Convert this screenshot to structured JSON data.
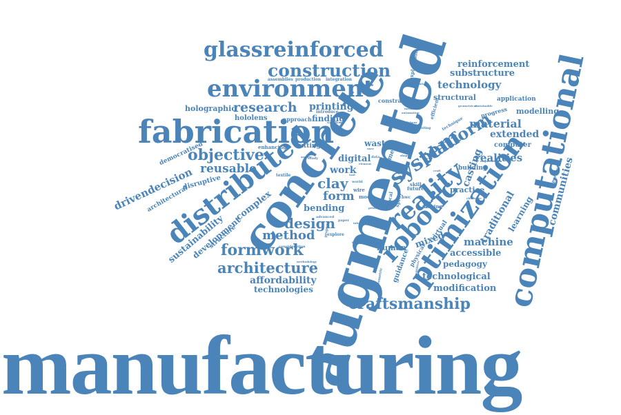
{
  "words": {
    "manufacturing": "manufacturing",
    "augmented": "augmented",
    "concrete": "concrete",
    "computational": "computational",
    "optimization": "optimization",
    "fabrication": "fabrication",
    "distributed": "distributed",
    "environment": "environment",
    "glassreinforced": "glassreinforced",
    "construction": "construction",
    "robotic": "robotic",
    "reality": "reality",
    "system": "system",
    "platform": "platform",
    "craftsmanship": "craftsmanship",
    "architecture": "architecture",
    "formwork": "formwork",
    "objective": "objective",
    "research": "research",
    "design": "design",
    "method": "method",
    "clay": "clay",
    "form": "form",
    "reusable": "reusable",
    "drivendecision": "drivendecision",
    "sustainability": "sustainability",
    "development": "development",
    "complex": "complex",
    "technology": "technology",
    "reinforcement": "reinforcement",
    "substructure": "substructure",
    "material": "material",
    "extended": "extended",
    "realities": "realities",
    "casting": "casting",
    "traditional": "traditional",
    "learning": "learning",
    "communities": "communities",
    "machine": "machine",
    "accessible": "accessible",
    "pedagogy": "pedagogy",
    "technological": "technological",
    "modification": "modification",
    "affordability": "affordability",
    "technologies": "technologies",
    "printing": "printing",
    "finding": "finding",
    "holographic": "holographic",
    "hololens": "hololens",
    "approach": "approach",
    "structural": "structural",
    "application": "application",
    "modelling": "modelling",
    "computer": "computer",
    "building": "building",
    "practice": "practice",
    "mixed": "mixed",
    "human": "human",
    "guidance": "guidance",
    "physical": "physical",
    "virtual": "virtual",
    "bending": "bending",
    "work": "work",
    "digital": "digital",
    "waste": "waste",
    "vision": "vision",
    "time": "time",
    "cutting": "cutting",
    "enhancing": "enhancing",
    "democratised": "democratised",
    "disruptive": "disruptive",
    "architectural": "architectural",
    "structure": "structure",
    "exploration": "exploration",
    "constraint": "constraint",
    "introduce": "introduce",
    "efficient": "efficient",
    "progress": "progress",
    "technique": "technique",
    "assemblies": "assemblies",
    "production": "production",
    "integration": "integration",
    "textile": "textile",
    "wire": "wire",
    "mode": "mode",
    "explore": "explore",
    "designer": "designer",
    "local": "local",
    "spray": "spray",
    "skill": "skill",
    "future": "future",
    "making": "making",
    "paper": "paper",
    "project": "project",
    "advanced": "advanced",
    "world": "world",
    "opportunities": "opportunities",
    "geometric": "geometric",
    "capabilities": "capabilities",
    "study": "study",
    "augmentation": "augmentation",
    "imagination": "imagination",
    "metaverse": "metaverse",
    "automation": "automation",
    "geometrical": "geometrical",
    "sustainable": "sustainable",
    "modeling": "modeling",
    "labour": "labour",
    "craft": "craft",
    "workflows": "workflows",
    "challenge": "challenge",
    "formworks": "formworks",
    "consideration": "consideration",
    "methodology": "methodology",
    "inhabited": "inhabited",
    "society": "society",
    "data": "data",
    "hwc": "hwc",
    "user": "user",
    "element": "element",
    "tool": "tool",
    "shape": "shape",
    "lab": "lab",
    "print": "print",
    "scale": "scale",
    "bim": "bim"
  },
  "color": "#4a84b8"
}
